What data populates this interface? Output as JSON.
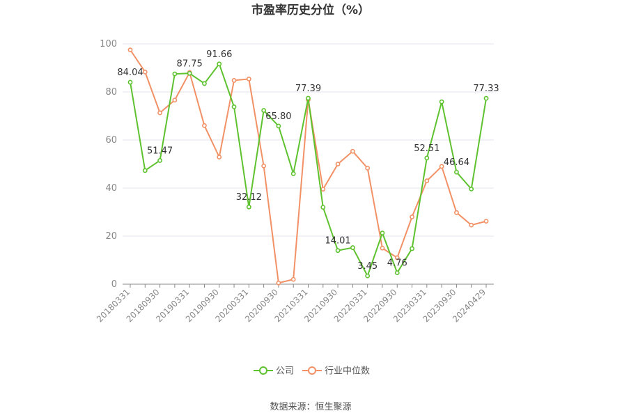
{
  "title": "市盈率历史分位（%）",
  "source": "数据来源：恒生聚源",
  "colors": {
    "company": "#5ec22e",
    "industry": "#f29166",
    "grid": "#e6e6ee",
    "axis": "#888888"
  },
  "chart_data": {
    "type": "line",
    "title": "市盈率历史分位（%）",
    "ylim": [
      0,
      100
    ],
    "yticks": [
      0,
      20,
      40,
      60,
      80,
      100
    ],
    "grid": true,
    "legend_position": "bottom",
    "x": [
      "20180331",
      "20180630",
      "20180930",
      "20181231",
      "20190331",
      "20190630",
      "20190930",
      "20191231",
      "20200331",
      "20200630",
      "20200930",
      "20201231",
      "20210331",
      "20210630",
      "20210930",
      "20211231",
      "20220331",
      "20220630",
      "20220930",
      "20221231",
      "20230331",
      "20230630",
      "20230930",
      "20231231",
      "20240429"
    ],
    "xtick_labels": [
      "20180331",
      "20180930",
      "20190331",
      "20190930",
      "20200331",
      "20200930",
      "20210331",
      "20210930",
      "20220331",
      "20220930",
      "20230331",
      "20230930",
      "20240429"
    ],
    "series": [
      {
        "name": "公司",
        "values": [
          84.04,
          47.3,
          51.47,
          87.5,
          87.75,
          83.5,
          91.66,
          73.8,
          32.12,
          72.3,
          65.8,
          46.0,
          77.39,
          32.0,
          14.01,
          15.2,
          3.45,
          21.3,
          4.76,
          14.8,
          52.51,
          75.9,
          46.64,
          39.6,
          77.33
        ]
      },
      {
        "name": "行业中位数",
        "values": [
          97.5,
          88.3,
          71.3,
          76.6,
          88.1,
          66.0,
          52.9,
          84.8,
          85.4,
          49.2,
          0.5,
          2.0,
          76.8,
          39.5,
          50.0,
          55.3,
          48.3,
          15.0,
          11.0,
          28.0,
          43.0,
          49.0,
          29.8,
          24.6,
          26.2
        ]
      }
    ],
    "data_labels": [
      {
        "series": 0,
        "index": 0,
        "text": "84.04"
      },
      {
        "series": 0,
        "index": 2,
        "text": "51.47"
      },
      {
        "series": 0,
        "index": 4,
        "text": "87.75"
      },
      {
        "series": 0,
        "index": 6,
        "text": "91.66"
      },
      {
        "series": 0,
        "index": 8,
        "text": "32.12"
      },
      {
        "series": 0,
        "index": 10,
        "text": "65.80"
      },
      {
        "series": 0,
        "index": 12,
        "text": "77.39"
      },
      {
        "series": 0,
        "index": 14,
        "text": "14.01"
      },
      {
        "series": 0,
        "index": 16,
        "text": "3.45"
      },
      {
        "series": 0,
        "index": 18,
        "text": "4.76"
      },
      {
        "series": 0,
        "index": 20,
        "text": "52.51"
      },
      {
        "series": 0,
        "index": 22,
        "text": "46.64"
      },
      {
        "series": 0,
        "index": 24,
        "text": "77.33"
      }
    ]
  }
}
